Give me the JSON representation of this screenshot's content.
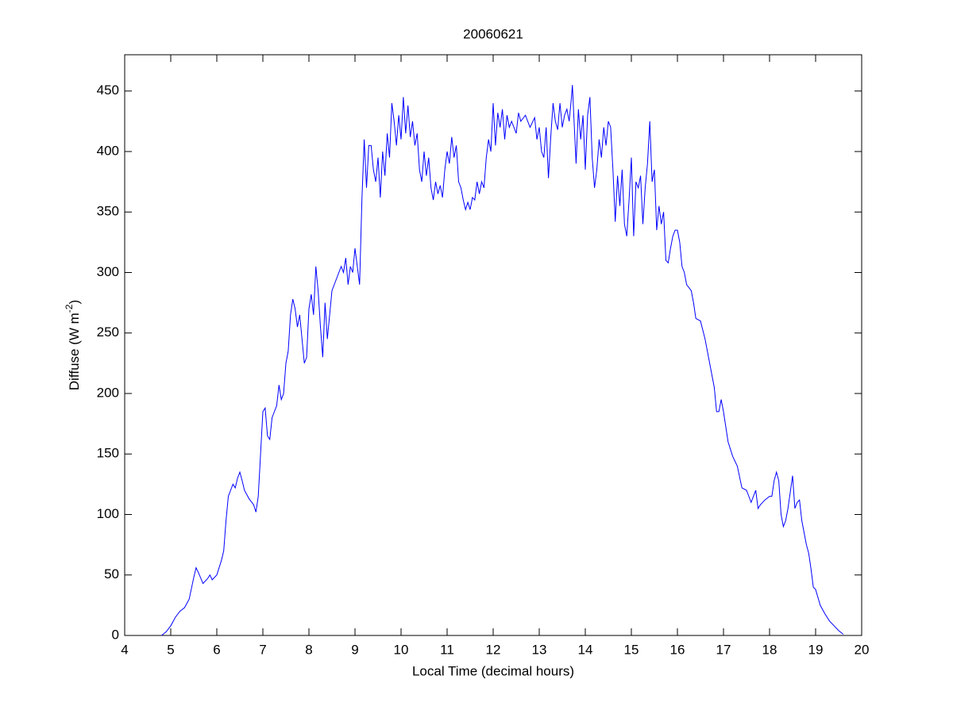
{
  "chart_data": {
    "type": "line",
    "title": "20060621",
    "xlabel": "Local Time (decimal hours)",
    "ylabel": {
      "text": "Diffuse (W m",
      "superscript": "-2",
      "suffix": ")"
    },
    "xlim": [
      4,
      20
    ],
    "ylim": [
      0,
      480
    ],
    "xticks": [
      4,
      5,
      6,
      7,
      8,
      9,
      10,
      11,
      12,
      13,
      14,
      15,
      16,
      17,
      18,
      19,
      20
    ],
    "yticks": [
      0,
      50,
      100,
      150,
      200,
      250,
      300,
      350,
      400,
      450
    ],
    "grid": false,
    "series": [
      {
        "color": "#0000ff",
        "x": [
          4.8,
          4.9,
          5.0,
          5.1,
          5.2,
          5.3,
          5.4,
          5.5,
          5.55,
          5.6,
          5.7,
          5.8,
          5.85,
          5.9,
          6.0,
          6.1,
          6.15,
          6.2,
          6.25,
          6.3,
          6.35,
          6.4,
          6.45,
          6.5,
          6.55,
          6.6,
          6.7,
          6.8,
          6.85,
          6.9,
          6.95,
          7.0,
          7.05,
          7.1,
          7.15,
          7.2,
          7.3,
          7.35,
          7.4,
          7.45,
          7.5,
          7.55,
          7.6,
          7.65,
          7.7,
          7.75,
          7.8,
          7.85,
          7.9,
          7.95,
          8.0,
          8.05,
          8.1,
          8.15,
          8.2,
          8.25,
          8.3,
          8.35,
          8.4,
          8.45,
          8.5,
          8.6,
          8.7,
          8.75,
          8.8,
          8.85,
          8.9,
          8.95,
          9.0,
          9.05,
          9.1,
          9.15,
          9.2,
          9.25,
          9.3,
          9.35,
          9.4,
          9.45,
          9.5,
          9.55,
          9.6,
          9.65,
          9.7,
          9.75,
          9.8,
          9.85,
          9.9,
          9.95,
          10.0,
          10.05,
          10.1,
          10.15,
          10.2,
          10.25,
          10.3,
          10.35,
          10.4,
          10.45,
          10.5,
          10.55,
          10.6,
          10.65,
          10.7,
          10.75,
          10.8,
          10.85,
          10.9,
          10.95,
          11.0,
          11.05,
          11.1,
          11.15,
          11.2,
          11.25,
          11.3,
          11.35,
          11.4,
          11.45,
          11.5,
          11.55,
          11.6,
          11.65,
          11.7,
          11.75,
          11.8,
          11.85,
          11.9,
          11.95,
          12.0,
          12.05,
          12.1,
          12.15,
          12.2,
          12.25,
          12.3,
          12.35,
          12.4,
          12.5,
          12.55,
          12.6,
          12.7,
          12.8,
          12.9,
          12.95,
          13.0,
          13.05,
          13.1,
          13.15,
          13.2,
          13.25,
          13.3,
          13.35,
          13.4,
          13.45,
          13.5,
          13.55,
          13.6,
          13.65,
          13.7,
          13.72,
          13.75,
          13.8,
          13.85,
          13.9,
          13.95,
          14.0,
          14.05,
          14.1,
          14.15,
          14.2,
          14.25,
          14.3,
          14.35,
          14.4,
          14.45,
          14.5,
          14.55,
          14.6,
          14.65,
          14.7,
          14.75,
          14.8,
          14.85,
          14.9,
          14.95,
          15.0,
          15.05,
          15.1,
          15.15,
          15.2,
          15.25,
          15.3,
          15.35,
          15.4,
          15.45,
          15.5,
          15.55,
          15.6,
          15.65,
          15.7,
          15.75,
          15.8,
          15.85,
          15.9,
          15.95,
          16.0,
          16.05,
          16.1,
          16.15,
          16.2,
          16.3,
          16.35,
          16.4,
          16.5,
          16.6,
          16.7,
          16.8,
          16.85,
          16.9,
          16.95,
          17.0,
          17.1,
          17.2,
          17.3,
          17.4,
          17.5,
          17.55,
          17.6,
          17.7,
          17.75,
          17.8,
          17.9,
          18.0,
          18.05,
          18.1,
          18.15,
          18.2,
          18.25,
          18.3,
          18.35,
          18.4,
          18.5,
          18.55,
          18.6,
          18.65,
          18.7,
          18.75,
          18.8,
          18.85,
          18.9,
          18.95,
          19.0,
          19.1,
          19.2,
          19.3,
          19.4,
          19.5,
          19.6
        ],
        "values": [
          0,
          3,
          8,
          15,
          20,
          23,
          30,
          48,
          56,
          52,
          43,
          47,
          50,
          46,
          50,
          62,
          70,
          95,
          115,
          120,
          125,
          122,
          130,
          135,
          128,
          120,
          113,
          108,
          102,
          115,
          150,
          185,
          188,
          165,
          162,
          180,
          190,
          207,
          195,
          200,
          225,
          235,
          265,
          278,
          270,
          255,
          265,
          245,
          225,
          230,
          270,
          282,
          265,
          305,
          285,
          255,
          230,
          275,
          245,
          265,
          285,
          295,
          305,
          300,
          312,
          290,
          305,
          300,
          320,
          305,
          290,
          360,
          410,
          370,
          405,
          405,
          385,
          375,
          395,
          362,
          400,
          380,
          415,
          395,
          440,
          425,
          405,
          430,
          410,
          445,
          415,
          438,
          412,
          425,
          405,
          415,
          385,
          375,
          400,
          380,
          395,
          370,
          360,
          375,
          365,
          372,
          362,
          385,
          400,
          390,
          412,
          395,
          405,
          375,
          370,
          360,
          352,
          358,
          352,
          362,
          360,
          375,
          365,
          375,
          370,
          395,
          410,
          400,
          440,
          405,
          432,
          420,
          435,
          410,
          430,
          420,
          425,
          415,
          432,
          425,
          430,
          420,
          428,
          410,
          420,
          400,
          395,
          420,
          378,
          412,
          440,
          425,
          418,
          440,
          420,
          430,
          435,
          425,
          445,
          455,
          430,
          390,
          435,
          410,
          430,
          385,
          430,
          445,
          395,
          370,
          385,
          410,
          395,
          420,
          405,
          425,
          420,
          385,
          342,
          380,
          355,
          385,
          340,
          330,
          360,
          395,
          330,
          375,
          370,
          380,
          340,
          370,
          390,
          425,
          375,
          385,
          335,
          355,
          340,
          350,
          310,
          308,
          320,
          330,
          335,
          335,
          325,
          305,
          300,
          290,
          285,
          275,
          262,
          260,
          245,
          225,
          205,
          185,
          185,
          195,
          185,
          160,
          148,
          140,
          122,
          120,
          115,
          110,
          120,
          105,
          108,
          112,
          115,
          115,
          128,
          135,
          128,
          100,
          90,
          95,
          105,
          132,
          105,
          110,
          112,
          95,
          85,
          75,
          68,
          55,
          40,
          38,
          25,
          18,
          12,
          8,
          4,
          1
        ]
      }
    ]
  }
}
